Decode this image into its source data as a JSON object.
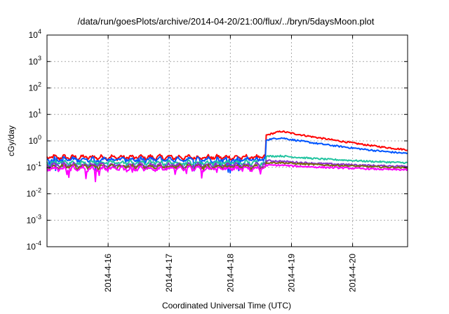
{
  "chart_data": {
    "type": "line",
    "title": "/data/run/goesPlots/archive/2014-04-20/21:00/flux/../bryn/5daysMoon.plot",
    "xlabel": "Coordinated Universal Time (UTC)",
    "ylabel": "cGy/day",
    "yscale": "log",
    "ylim": [
      0.0001,
      10000
    ],
    "xlim_days": [
      15.0,
      20.9
    ],
    "grid": true,
    "ytick_values": [
      0.0001,
      0.001,
      0.01,
      0.1,
      1,
      10,
      100,
      1000,
      10000
    ],
    "ytick_labels": [
      {
        "base": "10",
        "exp": "-4"
      },
      {
        "base": "10",
        "exp": "-3"
      },
      {
        "base": "10",
        "exp": "-2"
      },
      {
        "base": "10",
        "exp": "-1"
      },
      {
        "base": "10",
        "exp": "0"
      },
      {
        "base": "10",
        "exp": "1"
      },
      {
        "base": "10",
        "exp": "2"
      },
      {
        "base": "10",
        "exp": "3"
      },
      {
        "base": "10",
        "exp": "4"
      }
    ],
    "xtick_values": [
      16,
      17,
      18,
      19,
      20
    ],
    "xtick_labels": [
      "2014-4-16",
      "2014-4-17",
      "2014-4-18",
      "2014-4-19",
      "2014-4-20"
    ],
    "event_day": 18.58,
    "series": [
      {
        "color": "#ff0000",
        "pre": 0.24,
        "jump": 1.6,
        "peak": 2.3,
        "plateau": 0.48,
        "end": 0.3,
        "dips": false
      },
      {
        "color": "#0055ff",
        "pre": 0.2,
        "jump": 1.1,
        "peak": 1.3,
        "plateau": 0.36,
        "end": 0.26,
        "dips": true
      },
      {
        "color": "#22c4a0",
        "pre": 0.15,
        "jump": 0.26,
        "peak": 0.27,
        "plateau": 0.16,
        "end": 0.15,
        "dips": false
      },
      {
        "color": "#8b2fd0",
        "pre": 0.12,
        "jump": 0.18,
        "peak": 0.17,
        "plateau": 0.12,
        "end": 0.11,
        "dips": false
      },
      {
        "color": "#7a6a12",
        "pre": 0.105,
        "jump": 0.15,
        "peak": 0.15,
        "plateau": 0.105,
        "end": 0.1,
        "dips": false
      },
      {
        "color": "#ff00ff",
        "pre": 0.09,
        "jump": 0.12,
        "peak": 0.12,
        "plateau": 0.088,
        "end": 0.083,
        "dips": true
      }
    ]
  }
}
